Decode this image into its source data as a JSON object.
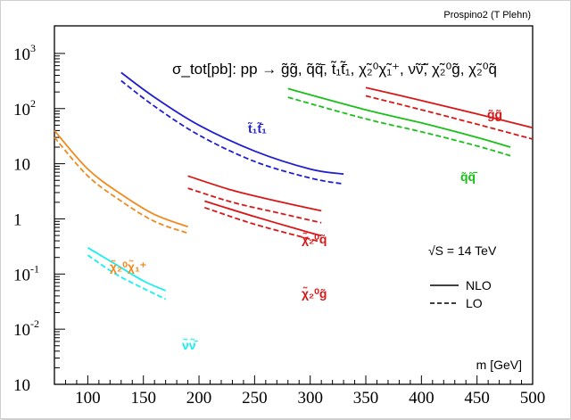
{
  "chart_data": {
    "type": "line",
    "title": "σ_tot[pb]: pp → g̃g̃, q̃q̃̄, t̃₁t̃̄₁, χ̃₂⁰χ̃₁⁺, ν̃ν̃̄, χ̃₂⁰g̃, χ̃₂⁰q̃",
    "credit": "Prospino2 (T Plehn)",
    "xlabel": "m [GeV]",
    "ylabel": "",
    "xlim": [
      70,
      500
    ],
    "ylim_log10": [
      -3,
      3.5
    ],
    "x_ticks": [
      100,
      150,
      200,
      250,
      300,
      350,
      400,
      450,
      500
    ],
    "y_ticks": [
      {
        "value": 1000,
        "base": "10",
        "exp": "3"
      },
      {
        "value": 100,
        "base": "10",
        "exp": "2"
      },
      {
        "value": 10,
        "base": "10",
        "exp": ""
      },
      {
        "value": 1,
        "base": "1",
        "exp": ""
      },
      {
        "value": 0.1,
        "base": "10",
        "exp": "-1"
      },
      {
        "value": 0.01,
        "base": "10",
        "exp": "-2"
      },
      {
        "value": 0.001,
        "base": "10",
        "exp": ""
      }
    ],
    "energy_label": "√S = 14 TeV",
    "legend": [
      {
        "label": "NLO",
        "style": "solid"
      },
      {
        "label": "LO",
        "style": "dashed"
      }
    ],
    "series": [
      {
        "name": "t1t1",
        "label": "t̃₁t̃̄₁",
        "color": "#1f1fd0",
        "nlo": {
          "x": [
            130,
            160,
            200,
            250,
            300,
            330
          ],
          "y": [
            450,
            160,
            50,
            17,
            8,
            6.5
          ]
        },
        "lo": {
          "x": [
            130,
            160,
            200,
            250,
            300,
            330
          ],
          "y": [
            320,
            110,
            33,
            11,
            5.5,
            4.3
          ]
        }
      },
      {
        "name": "gg",
        "label": "g̃g̃",
        "color": "#d81818",
        "nlo": {
          "x": [
            350,
            400,
            450,
            500
          ],
          "y": [
            240,
            140,
            80,
            45
          ]
        },
        "lo": {
          "x": [
            350,
            400,
            450,
            500
          ],
          "y": [
            170,
            95,
            52,
            28
          ]
        }
      },
      {
        "name": "qq",
        "label": "q̃q̃̄",
        "color": "#18c018",
        "nlo": {
          "x": [
            280,
            350,
            400,
            450,
            480
          ],
          "y": [
            230,
            95,
            55,
            30,
            20
          ]
        },
        "lo": {
          "x": [
            280,
            350,
            400,
            450,
            480
          ],
          "y": [
            160,
            65,
            38,
            21,
            14
          ]
        }
      },
      {
        "name": "chi2chi1",
        "label": "χ̃₂⁰χ̃₁⁺",
        "color": "#f08a1e",
        "nlo": {
          "x": [
            70,
            100,
            130,
            160,
            190
          ],
          "y": [
            40,
            8,
            2.8,
            1.2,
            0.72
          ]
        },
        "lo": {
          "x": [
            70,
            100,
            130,
            160,
            190
          ],
          "y": [
            30,
            6,
            2.1,
            0.9,
            0.55
          ]
        }
      },
      {
        "name": "chi2q",
        "label": "χ̃₂⁰q̃",
        "color": "#d81818",
        "nlo": {
          "x": [
            190,
            230,
            270,
            310
          ],
          "y": [
            6.0,
            3.3,
            2.1,
            1.4
          ]
        },
        "lo": {
          "x": [
            190,
            230,
            270,
            310
          ],
          "y": [
            3.6,
            2.0,
            1.3,
            0.85
          ]
        }
      },
      {
        "name": "chi2g",
        "label": "χ̃₂⁰g̃",
        "color": "#d81818",
        "nlo": {
          "x": [
            205,
            250,
            300,
            310
          ],
          "y": [
            2.1,
            1.1,
            0.56,
            0.5
          ]
        },
        "lo": {
          "x": [
            205,
            250,
            300,
            310
          ],
          "y": [
            1.6,
            0.8,
            0.43,
            0.38
          ]
        }
      },
      {
        "name": "nunu",
        "label": "ν̃ν̃̄",
        "color": "#18f0f0",
        "nlo": {
          "x": [
            100,
            125,
            150,
            170
          ],
          "y": [
            0.3,
            0.15,
            0.075,
            0.05
          ]
        },
        "lo": {
          "x": [
            100,
            125,
            150,
            170
          ],
          "y": [
            0.22,
            0.1,
            0.055,
            0.035
          ]
        }
      }
    ]
  }
}
